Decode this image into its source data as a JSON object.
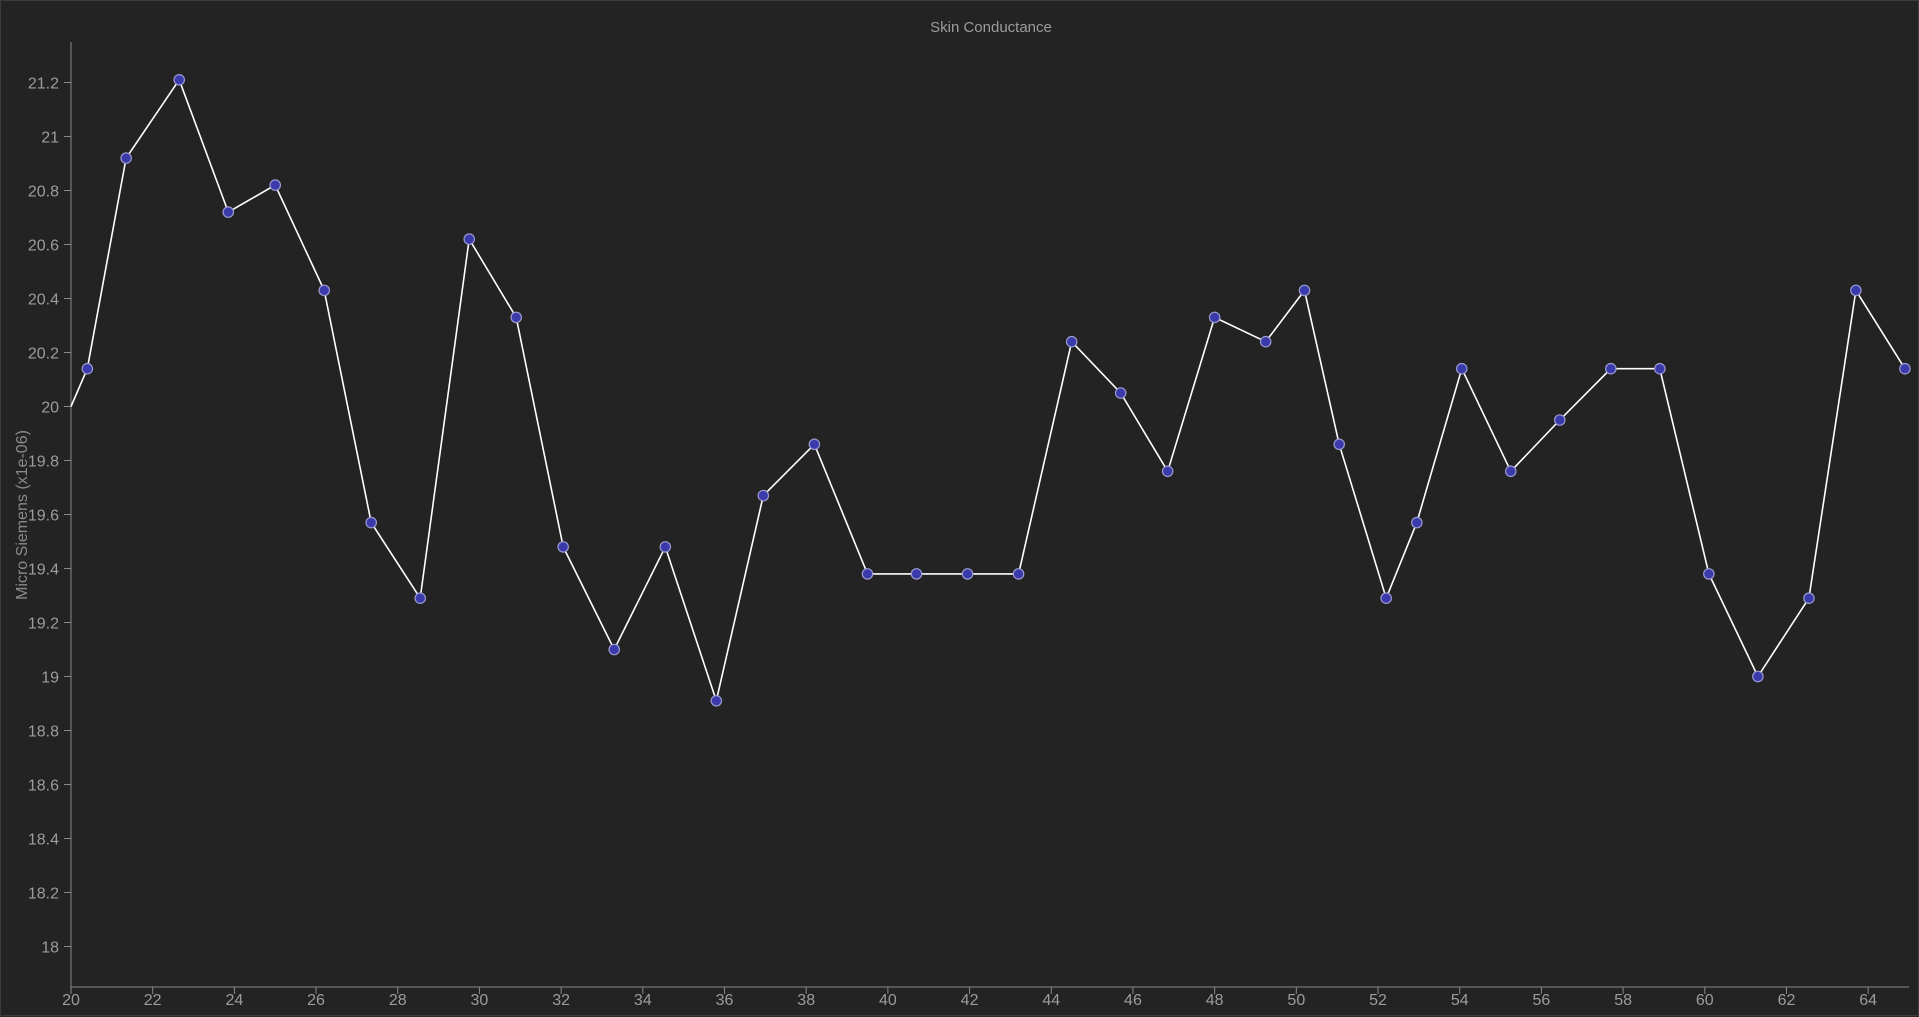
{
  "chart_data": {
    "type": "line",
    "title": "Skin Conductance",
    "xlabel": "",
    "ylabel": "Micro Siemens (x1e-06)",
    "xlim": [
      20,
      65
    ],
    "ylim": [
      17.85,
      21.35
    ],
    "x_ticks": [
      20,
      22,
      24,
      26,
      28,
      30,
      32,
      34,
      36,
      38,
      40,
      42,
      44,
      46,
      48,
      50,
      52,
      54,
      56,
      58,
      60,
      62,
      64
    ],
    "y_ticks": [
      18,
      18.2,
      18.4,
      18.6,
      18.8,
      19,
      19.2,
      19.4,
      19.6,
      19.8,
      20,
      20.2,
      20.4,
      20.6,
      20.8,
      21,
      21.2
    ],
    "grid": false,
    "line_color": "#ffffff",
    "marker_color": "#3a3aaa",
    "marker_edge_color": "#9a9ad0",
    "series": [
      {
        "x": [
          20.0,
          20.4,
          21.35,
          22.65,
          23.85,
          25.0,
          26.2,
          27.35,
          28.55,
          29.75,
          30.9,
          32.05,
          33.3,
          34.55,
          35.8,
          36.95,
          38.2,
          39.5,
          40.7,
          41.95,
          43.2,
          44.5,
          45.7,
          46.85,
          48.0,
          49.25,
          50.2,
          51.05,
          52.2,
          52.95,
          54.05,
          55.25,
          56.45,
          57.7,
          58.9,
          60.1,
          61.3,
          62.55,
          63.7,
          64.9
        ],
        "y": [
          20.0,
          20.14,
          20.92,
          21.21,
          20.72,
          20.82,
          20.43,
          19.57,
          19.29,
          20.62,
          20.33,
          19.48,
          19.1,
          19.48,
          18.91,
          19.67,
          19.86,
          19.38,
          19.38,
          19.38,
          19.38,
          20.24,
          20.05,
          19.76,
          20.33,
          20.24,
          20.43,
          19.86,
          19.29,
          19.57,
          20.14,
          19.76,
          19.95,
          20.14,
          20.14,
          19.38,
          19.0,
          19.29,
          20.43,
          20.14
        ],
        "markers_from_index": 1
      }
    ]
  }
}
